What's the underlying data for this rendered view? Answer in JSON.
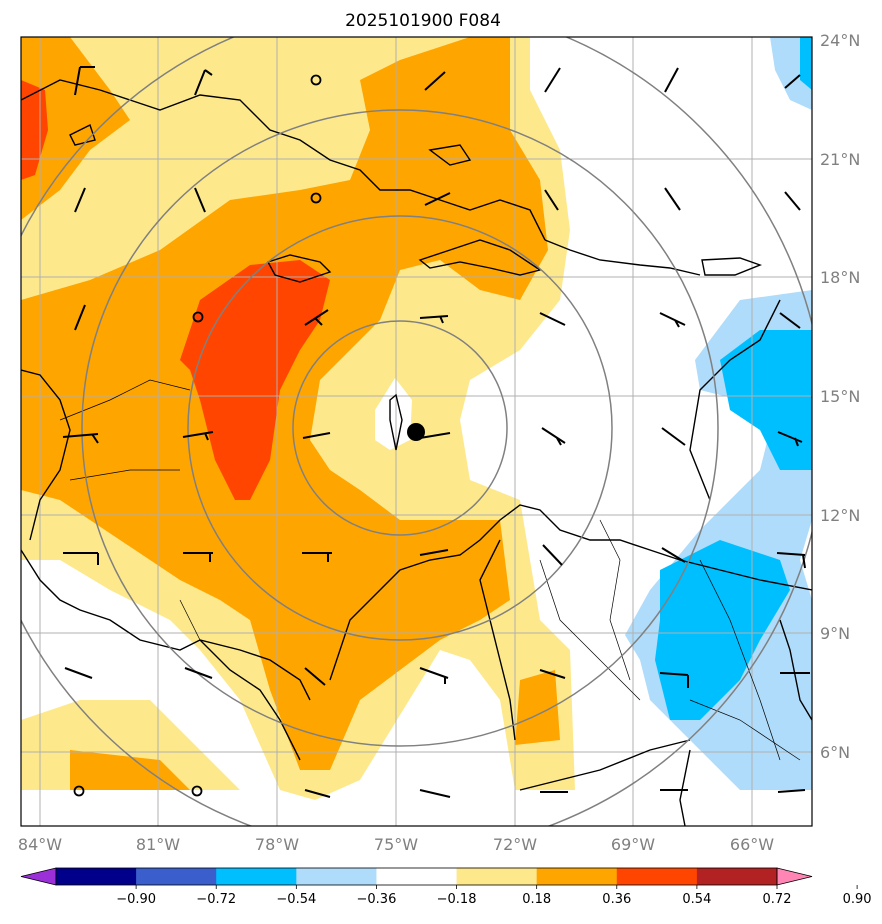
{
  "title": "2025101900 F084",
  "map": {
    "lon_range": [
      -84.3,
      -64.8
    ],
    "lat_range": [
      4.1,
      24.0
    ],
    "lon_ticks": [
      "84°W",
      "81°W",
      "78°W",
      "75°W",
      "72°W",
      "69°W",
      "66°W"
    ],
    "lat_ticks": [
      "24°N",
      "21°N",
      "18°N",
      "15°N",
      "12°N",
      "9°N",
      "6°N"
    ],
    "gridlines": true,
    "center_marker": {
      "lon": -74.5,
      "lat": 14.1
    },
    "range_ring_center": {
      "lon": -74.7,
      "lat": 14.2
    },
    "range_rings_deg": [
      2.7,
      5.3,
      8.0,
      10.6
    ]
  },
  "colorbar": {
    "levels": [
      "−0.90",
      "−0.72",
      "−0.54",
      "−0.36",
      "−0.18",
      "0.18",
      "0.36",
      "0.54",
      "0.72",
      "0.90"
    ],
    "colors": [
      "#9b30d9",
      "#00008b",
      "#3a5fcd",
      "#00bfff",
      "#afdcfa",
      "#ffffff",
      "#fde98c",
      "#ffa500",
      "#ff4500",
      "#b22222",
      "#ff85b4"
    ]
  }
}
